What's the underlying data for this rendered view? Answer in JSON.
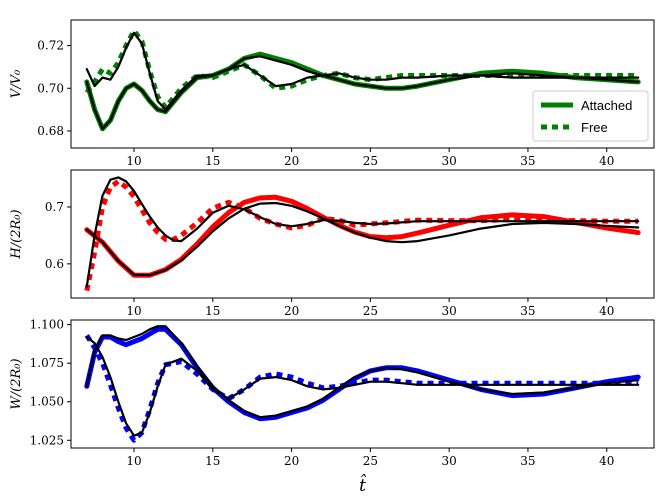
{
  "chart_data": [
    {
      "type": "line",
      "xlabel": "",
      "ylabel": "V/V₀",
      "xlim": [
        6,
        43
      ],
      "ylim": [
        0.672,
        0.732
      ],
      "xticks": [
        10,
        15,
        20,
        25,
        30,
        35,
        40
      ],
      "yticks": [
        0.68,
        0.7,
        0.72
      ],
      "ytick_labels": [
        "0.68",
        "0.70",
        "0.72"
      ],
      "legend": {
        "position": "lower-right",
        "entries": [
          {
            "label": "Attached",
            "style": "solid",
            "color": "#008000"
          },
          {
            "label": "Free",
            "style": "dotted",
            "color": "#008000"
          }
        ]
      },
      "series": [
        {
          "style": "solid",
          "color": "#008000",
          "x": [
            7,
            7.5,
            8,
            8.5,
            9,
            9.5,
            10,
            10.5,
            11,
            11.5,
            12,
            13,
            14,
            15,
            16,
            17,
            18,
            19,
            20,
            21,
            22,
            23,
            24,
            25,
            26,
            27,
            28,
            30,
            32,
            34,
            36,
            38,
            40,
            42
          ],
          "y": [
            0.703,
            0.69,
            0.681,
            0.685,
            0.694,
            0.7,
            0.702,
            0.699,
            0.694,
            0.69,
            0.689,
            0.698,
            0.705,
            0.706,
            0.709,
            0.714,
            0.716,
            0.714,
            0.712,
            0.709,
            0.706,
            0.704,
            0.702,
            0.701,
            0.7,
            0.7,
            0.701,
            0.704,
            0.707,
            0.708,
            0.707,
            0.705,
            0.704,
            0.703
          ]
        },
        {
          "style": "dotted",
          "color": "#008000",
          "x": [
            7,
            7.5,
            8,
            8.5,
            9,
            9.5,
            10,
            10.5,
            11,
            11.5,
            12,
            13,
            14,
            15,
            16,
            17,
            18,
            19,
            20,
            21,
            22,
            23,
            24,
            25,
            26,
            27,
            28,
            30,
            32,
            34,
            36,
            38,
            40,
            42
          ],
          "y": [
            0.698,
            0.703,
            0.709,
            0.707,
            0.712,
            0.72,
            0.727,
            0.722,
            0.708,
            0.696,
            0.691,
            0.7,
            0.706,
            0.705,
            0.708,
            0.711,
            0.706,
            0.7,
            0.701,
            0.704,
            0.706,
            0.707,
            0.705,
            0.704,
            0.705,
            0.706,
            0.706,
            0.706,
            0.706,
            0.706,
            0.706,
            0.706,
            0.706,
            0.706
          ]
        },
        {
          "style": "solid",
          "color": "#000000",
          "x": [
            7,
            7.5,
            8,
            8.5,
            9,
            9.5,
            10,
            10.5,
            11,
            11.5,
            12,
            13,
            14,
            15,
            16,
            17,
            18,
            19,
            20,
            21,
            22,
            23,
            24,
            25,
            26,
            27,
            28,
            30,
            32,
            34,
            36,
            38,
            40,
            42
          ],
          "y": [
            0.703,
            0.69,
            0.681,
            0.685,
            0.694,
            0.7,
            0.702,
            0.699,
            0.694,
            0.69,
            0.689,
            0.698,
            0.705,
            0.706,
            0.709,
            0.714,
            0.715,
            0.713,
            0.711,
            0.708,
            0.706,
            0.704,
            0.702,
            0.701,
            0.7,
            0.7,
            0.701,
            0.704,
            0.706,
            0.707,
            0.706,
            0.705,
            0.704,
            0.703
          ]
        },
        {
          "style": "solid",
          "color": "#000000",
          "x": [
            7,
            7.5,
            8,
            8.5,
            9,
            9.5,
            10,
            10.5,
            11,
            11.5,
            12,
            13,
            14,
            15,
            16,
            17,
            18,
            19,
            20,
            21,
            22,
            23,
            24,
            25,
            26,
            27,
            28,
            30,
            32,
            34,
            36,
            38,
            40,
            42
          ],
          "y": [
            0.709,
            0.701,
            0.705,
            0.704,
            0.71,
            0.719,
            0.726,
            0.721,
            0.707,
            0.694,
            0.69,
            0.699,
            0.706,
            0.706,
            0.709,
            0.711,
            0.706,
            0.701,
            0.702,
            0.705,
            0.706,
            0.707,
            0.705,
            0.704,
            0.704,
            0.705,
            0.705,
            0.706,
            0.706,
            0.705,
            0.705,
            0.705,
            0.705,
            0.705
          ]
        }
      ]
    },
    {
      "type": "line",
      "xlabel": "",
      "ylabel": "H/(2R₀)",
      "xlim": [
        6,
        43
      ],
      "ylim": [
        0.54,
        0.765
      ],
      "xticks": [
        10,
        15,
        20,
        25,
        30,
        35,
        40
      ],
      "yticks": [
        0.6,
        0.7
      ],
      "ytick_labels": [
        "0.6",
        "0.7"
      ],
      "series": [
        {
          "style": "solid",
          "color": "#ff0000",
          "x": [
            7,
            8,
            9,
            10,
            11,
            12,
            13,
            14,
            15,
            16,
            17,
            18,
            19,
            20,
            21,
            22,
            23,
            24,
            25,
            26,
            27,
            28,
            30,
            32,
            34,
            36,
            38,
            40,
            42
          ],
          "y": [
            0.66,
            0.638,
            0.605,
            0.58,
            0.58,
            0.59,
            0.608,
            0.635,
            0.665,
            0.69,
            0.708,
            0.716,
            0.717,
            0.71,
            0.697,
            0.682,
            0.668,
            0.656,
            0.648,
            0.646,
            0.648,
            0.654,
            0.668,
            0.681,
            0.686,
            0.683,
            0.673,
            0.663,
            0.655
          ]
        },
        {
          "style": "dotted",
          "color": "#ff0000",
          "x": [
            7,
            7.5,
            8,
            8.5,
            9,
            9.5,
            10,
            10.5,
            11,
            11.5,
            12,
            12.5,
            13,
            14,
            15,
            16,
            17,
            18,
            19,
            20,
            21,
            22,
            23,
            24,
            25,
            26,
            28,
            30,
            32,
            34,
            36,
            38,
            40,
            42
          ],
          "y": [
            0.553,
            0.62,
            0.7,
            0.735,
            0.745,
            0.735,
            0.718,
            0.695,
            0.672,
            0.655,
            0.643,
            0.643,
            0.65,
            0.672,
            0.698,
            0.708,
            0.698,
            0.68,
            0.67,
            0.663,
            0.668,
            0.68,
            0.677,
            0.668,
            0.67,
            0.672,
            0.677,
            0.676,
            0.676,
            0.678,
            0.677,
            0.676,
            0.675,
            0.675
          ]
        },
        {
          "style": "solid",
          "color": "#000000",
          "x": [
            7,
            8,
            9,
            10,
            11,
            12,
            13,
            14,
            15,
            16,
            17,
            18,
            19,
            20,
            21,
            22,
            23,
            24,
            25,
            26,
            27,
            28,
            30,
            32,
            34,
            36,
            38,
            40,
            42
          ],
          "y": [
            0.66,
            0.638,
            0.605,
            0.581,
            0.58,
            0.589,
            0.606,
            0.63,
            0.657,
            0.68,
            0.697,
            0.706,
            0.707,
            0.702,
            0.692,
            0.68,
            0.667,
            0.655,
            0.646,
            0.64,
            0.638,
            0.64,
            0.65,
            0.662,
            0.67,
            0.672,
            0.67,
            0.667,
            0.664
          ]
        },
        {
          "style": "solid",
          "color": "#000000",
          "x": [
            7,
            7.5,
            8,
            8.5,
            9,
            9.5,
            10,
            10.5,
            11,
            11.5,
            12,
            12.5,
            13,
            14,
            15,
            16,
            17,
            18,
            19,
            20,
            21,
            22,
            23,
            24,
            25,
            26,
            28,
            30,
            32,
            34,
            36,
            38,
            40,
            42
          ],
          "y": [
            0.56,
            0.65,
            0.72,
            0.748,
            0.752,
            0.745,
            0.728,
            0.705,
            0.683,
            0.664,
            0.65,
            0.641,
            0.64,
            0.662,
            0.69,
            0.702,
            0.696,
            0.682,
            0.67,
            0.666,
            0.67,
            0.677,
            0.676,
            0.672,
            0.67,
            0.671,
            0.675,
            0.675,
            0.675,
            0.675,
            0.675,
            0.675,
            0.675,
            0.675
          ]
        }
      ]
    },
    {
      "type": "line",
      "xlabel": "t̂",
      "ylabel": "W/(2R₀)",
      "xlim": [
        6,
        43
      ],
      "ylim": [
        1.02,
        1.103
      ],
      "xticks": [
        10,
        15,
        20,
        25,
        30,
        35,
        40
      ],
      "yticks": [
        1.025,
        1.05,
        1.075,
        1.1
      ],
      "ytick_labels": [
        "1.025",
        "1.050",
        "1.075",
        "1.100"
      ],
      "series": [
        {
          "style": "solid",
          "color": "#0000ff",
          "x": [
            7,
            7.5,
            8,
            8.5,
            9,
            9.5,
            10,
            10.5,
            11,
            11.5,
            12,
            13,
            14,
            15,
            16,
            17,
            18,
            19,
            20,
            21,
            22,
            23,
            24,
            25,
            26,
            27,
            28,
            30,
            32,
            34,
            36,
            38,
            40,
            42
          ],
          "y": [
            1.06,
            1.082,
            1.092,
            1.092,
            1.089,
            1.087,
            1.089,
            1.091,
            1.094,
            1.097,
            1.097,
            1.087,
            1.072,
            1.059,
            1.05,
            1.043,
            1.039,
            1.04,
            1.043,
            1.046,
            1.051,
            1.058,
            1.065,
            1.07,
            1.072,
            1.072,
            1.07,
            1.064,
            1.058,
            1.054,
            1.055,
            1.059,
            1.063,
            1.066
          ]
        },
        {
          "style": "dotted",
          "color": "#0000ff",
          "x": [
            7,
            7.5,
            8,
            8.5,
            9,
            9.5,
            10,
            10.5,
            11,
            11.5,
            12,
            13,
            14,
            15,
            16,
            17,
            18,
            19,
            20,
            21,
            22,
            23,
            24,
            25,
            26,
            27,
            28,
            30,
            32,
            34,
            36,
            38,
            40,
            42
          ],
          "y": [
            1.093,
            1.085,
            1.075,
            1.061,
            1.046,
            1.033,
            1.025,
            1.03,
            1.045,
            1.062,
            1.074,
            1.076,
            1.068,
            1.058,
            1.052,
            1.058,
            1.066,
            1.068,
            1.066,
            1.062,
            1.059,
            1.06,
            1.062,
            1.064,
            1.064,
            1.063,
            1.062,
            1.062,
            1.062,
            1.062,
            1.062,
            1.062,
            1.062,
            1.062
          ]
        },
        {
          "style": "solid",
          "color": "#000000",
          "x": [
            7,
            7.5,
            8,
            8.5,
            9,
            9.5,
            10,
            10.5,
            11,
            11.5,
            12,
            13,
            14,
            15,
            16,
            17,
            18,
            19,
            20,
            21,
            22,
            23,
            24,
            25,
            26,
            27,
            28,
            30,
            32,
            34,
            36,
            38,
            40,
            42
          ],
          "y": [
            1.06,
            1.083,
            1.093,
            1.093,
            1.091,
            1.09,
            1.092,
            1.094,
            1.097,
            1.099,
            1.099,
            1.088,
            1.073,
            1.06,
            1.051,
            1.044,
            1.04,
            1.041,
            1.044,
            1.047,
            1.052,
            1.059,
            1.066,
            1.07,
            1.072,
            1.071,
            1.069,
            1.063,
            1.058,
            1.055,
            1.056,
            1.059,
            1.062,
            1.064
          ]
        },
        {
          "style": "solid",
          "color": "#000000",
          "x": [
            7,
            7.5,
            8,
            8.5,
            9,
            9.5,
            10,
            10.5,
            11,
            11.5,
            12,
            13,
            14,
            15,
            16,
            17,
            18,
            19,
            20,
            21,
            22,
            23,
            24,
            25,
            26,
            27,
            28,
            30,
            32,
            34,
            36,
            38,
            40,
            42
          ],
          "y": [
            1.092,
            1.088,
            1.079,
            1.066,
            1.05,
            1.036,
            1.028,
            1.03,
            1.043,
            1.06,
            1.074,
            1.078,
            1.07,
            1.058,
            1.052,
            1.058,
            1.065,
            1.066,
            1.064,
            1.06,
            1.058,
            1.059,
            1.061,
            1.063,
            1.063,
            1.062,
            1.061,
            1.061,
            1.061,
            1.061,
            1.061,
            1.061,
            1.061,
            1.061
          ]
        }
      ]
    }
  ]
}
